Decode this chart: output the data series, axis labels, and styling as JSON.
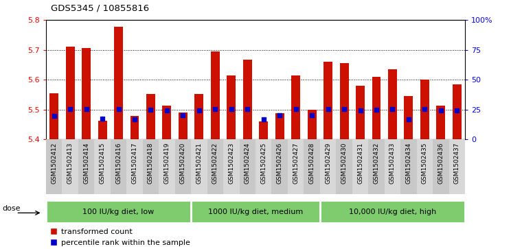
{
  "title": "GDS5345 / 10855816",
  "samples": [
    "GSM1502412",
    "GSM1502413",
    "GSM1502414",
    "GSM1502415",
    "GSM1502416",
    "GSM1502417",
    "GSM1502418",
    "GSM1502419",
    "GSM1502420",
    "GSM1502421",
    "GSM1502422",
    "GSM1502423",
    "GSM1502424",
    "GSM1502425",
    "GSM1502426",
    "GSM1502427",
    "GSM1502428",
    "GSM1502429",
    "GSM1502430",
    "GSM1502431",
    "GSM1502432",
    "GSM1502433",
    "GSM1502434",
    "GSM1502435",
    "GSM1502436",
    "GSM1502437"
  ],
  "bar_values": [
    5.555,
    5.71,
    5.705,
    5.462,
    5.778,
    5.478,
    5.552,
    5.512,
    5.49,
    5.552,
    5.695,
    5.614,
    5.668,
    5.46,
    5.487,
    5.615,
    5.5,
    5.66,
    5.655,
    5.58,
    5.61,
    5.635,
    5.545,
    5.6,
    5.512,
    5.585
  ],
  "percentile_values": [
    19.5,
    25.2,
    25.5,
    17.5,
    25.5,
    17.0,
    25.0,
    24.5,
    20.0,
    24.5,
    25.5,
    25.5,
    25.5,
    17.0,
    20.0,
    25.5,
    20.0,
    25.5,
    25.5,
    24.5,
    25.0,
    25.5,
    17.0,
    25.5,
    24.5,
    24.5
  ],
  "ylim_left": [
    5.4,
    5.8
  ],
  "ylim_right": [
    0,
    100
  ],
  "yticks_left": [
    5.4,
    5.5,
    5.6,
    5.7,
    5.8
  ],
  "yticks_right": [
    0,
    25,
    50,
    75,
    100
  ],
  "ytick_labels_right": [
    "0",
    "25",
    "50",
    "75",
    "100%"
  ],
  "dotted_lines": [
    5.5,
    5.6,
    5.7
  ],
  "groups": [
    {
      "label": "100 IU/kg diet, low",
      "start": 0,
      "end": 8
    },
    {
      "label": "1000 IU/kg diet, medium",
      "start": 9,
      "end": 16
    },
    {
      "label": "10,000 IU/kg diet, high",
      "start": 17,
      "end": 25
    }
  ],
  "group_color": "#7ECC6E",
  "group_divider_color": "white",
  "bar_color": "#cc1100",
  "dot_color": "#0000cc",
  "bar_bottom": 5.4,
  "bar_width": 0.55,
  "legend_labels": [
    "transformed count",
    "percentile rank within the sample"
  ],
  "xlabel_bg_color": "#c8c8c8"
}
